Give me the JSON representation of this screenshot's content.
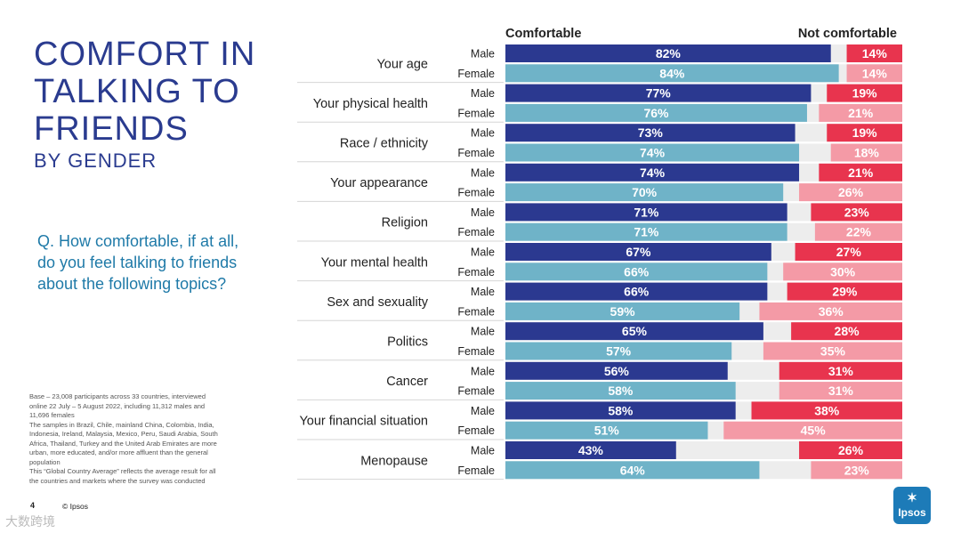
{
  "title_lines": [
    "COMFORT IN",
    "TALKING TO",
    "FRIENDS"
  ],
  "subtitle": "BY GENDER",
  "question": "Q. How comfortable, if at all, do you feel talking to friends about the following topics?",
  "base_note_lines": [
    "Base – 23,008 participants across 33 countries, interviewed",
    "online 22 July – 5 August 2022, including 11,312 males and",
    "11,696 females",
    "The samples in Brazil, Chile, mainland China, Colombia, India,",
    "Indonesia, Ireland, Malaysia, Mexico, Peru, Saudi Arabia, South",
    "Africa, Thailand, Turkey and the United Arab Emirates are more",
    "urban, more educated, and/or more affluent than the general",
    "population",
    "This “Global Country Average” reflects the average result for all",
    "the countries and markets where the survey was conducted"
  ],
  "page_number": "4",
  "copyright": "© Ipsos",
  "logo_text": "Ipsos",
  "logo_icon": "ipsos-figure-icon",
  "watermark": "大数跨境",
  "colors": {
    "male_comfortable": "#2b3990",
    "female_comfortable": "#6fb3c8",
    "male_not": "#e8344e",
    "female_not": "#f49aa6",
    "gap": "#ededed",
    "title": "#2a3b8f",
    "question": "#1f7aa8"
  },
  "chart_data": {
    "type": "bar",
    "orientation": "horizontal-diverging",
    "header_left": "Comfortable",
    "header_right": "Not comfortable",
    "unit": "%",
    "xlim": [
      0,
      100
    ],
    "topics": [
      {
        "name": "Your age",
        "male": {
          "comfortable": 82,
          "not_comfortable": 14
        },
        "female": {
          "comfortable": 84,
          "not_comfortable": 14
        }
      },
      {
        "name": "Your physical health",
        "male": {
          "comfortable": 77,
          "not_comfortable": 19
        },
        "female": {
          "comfortable": 76,
          "not_comfortable": 21
        }
      },
      {
        "name": "Race / ethnicity",
        "male": {
          "comfortable": 73,
          "not_comfortable": 19
        },
        "female": {
          "comfortable": 74,
          "not_comfortable": 18
        }
      },
      {
        "name": "Your appearance",
        "male": {
          "comfortable": 74,
          "not_comfortable": 21
        },
        "female": {
          "comfortable": 70,
          "not_comfortable": 26
        }
      },
      {
        "name": "Religion",
        "male": {
          "comfortable": 71,
          "not_comfortable": 23
        },
        "female": {
          "comfortable": 71,
          "not_comfortable": 22
        }
      },
      {
        "name": "Your mental health",
        "male": {
          "comfortable": 67,
          "not_comfortable": 27
        },
        "female": {
          "comfortable": 66,
          "not_comfortable": 30
        }
      },
      {
        "name": "Sex and sexuality",
        "male": {
          "comfortable": 66,
          "not_comfortable": 29
        },
        "female": {
          "comfortable": 59,
          "not_comfortable": 36
        }
      },
      {
        "name": "Politics",
        "male": {
          "comfortable": 65,
          "not_comfortable": 28
        },
        "female": {
          "comfortable": 57,
          "not_comfortable": 35
        }
      },
      {
        "name": "Cancer",
        "male": {
          "comfortable": 56,
          "not_comfortable": 31
        },
        "female": {
          "comfortable": 58,
          "not_comfortable": 31
        }
      },
      {
        "name": "Your financial situation",
        "male": {
          "comfortable": 58,
          "not_comfortable": 38
        },
        "female": {
          "comfortable": 51,
          "not_comfortable": 45
        }
      },
      {
        "name": "Menopause",
        "male": {
          "comfortable": 43,
          "not_comfortable": 26
        },
        "female": {
          "comfortable": 64,
          "not_comfortable": 23
        }
      }
    ],
    "gender_labels": {
      "male": "Male",
      "female": "Female"
    }
  }
}
